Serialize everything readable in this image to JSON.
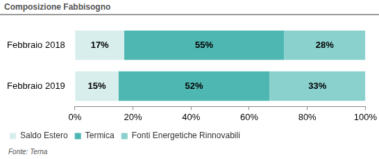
{
  "chart_data": {
    "type": "bar",
    "title": "Composizione Fabbisogno",
    "orientation": "horizontal",
    "stacked": true,
    "data_labels": true,
    "grid": false,
    "legend": "bottom",
    "categories": [
      "Febbraio 2018",
      "Febbraio 2019"
    ],
    "series": [
      {
        "name": "Saldo Estero",
        "color": "#d7eeed",
        "values": [
          17,
          15
        ],
        "value_labels": [
          "17%",
          "15%"
        ]
      },
      {
        "name": "Termica",
        "color": "#4fb7b2",
        "values": [
          55,
          52
        ],
        "value_labels": [
          "55%",
          "52%"
        ]
      },
      {
        "name": "Fonti Energetiche Rinnovabili",
        "color": "#8ad1ce",
        "values": [
          28,
          33
        ],
        "value_labels": [
          "28%",
          "33%"
        ]
      }
    ],
    "xlim": [
      0,
      100
    ],
    "xticks": [
      {
        "value": 0,
        "label": "0%"
      },
      {
        "value": 20,
        "label": "20%"
      },
      {
        "value": 40,
        "label": "40%"
      },
      {
        "value": 60,
        "label": "60%"
      },
      {
        "value": 80,
        "label": "80%"
      },
      {
        "value": 100,
        "label": "100%"
      }
    ],
    "annotations": [
      "Fonte: Terna"
    ]
  }
}
